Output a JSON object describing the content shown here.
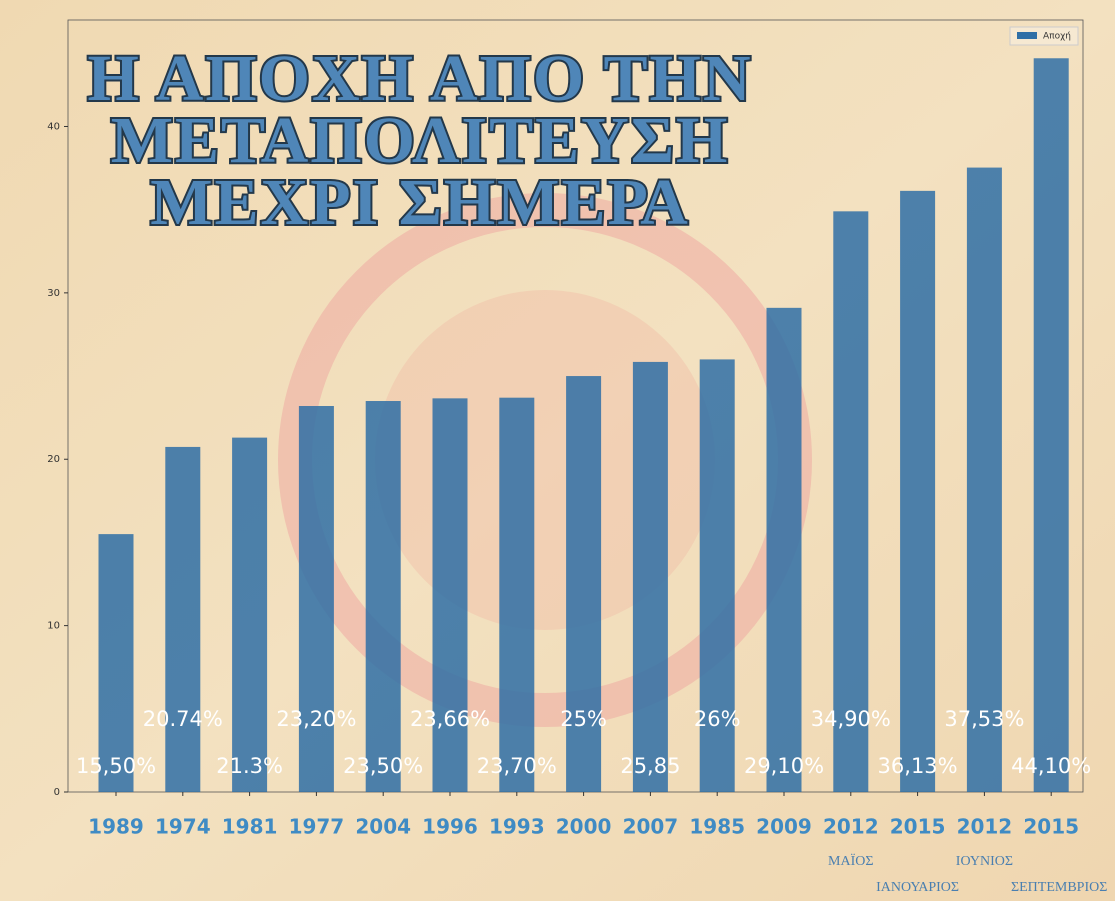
{
  "chart_data": {
    "type": "bar",
    "title_lines": [
      "Η ΑΠΟΧΗ ΑΠΟ ΤΗΝ",
      "ΜΕΤΑΠΟΛΙΤΕΥΣΗ",
      "ΜΕΧΡΙ ΣΗΜΕΡΑ"
    ],
    "categories": [
      "1989",
      "1974",
      "1981",
      "1977",
      "2004",
      "1996",
      "1993",
      "2000",
      "2007",
      "1985",
      "2009",
      "2012",
      "2015",
      "2012",
      "2015"
    ],
    "month_labels": [
      null,
      null,
      null,
      null,
      null,
      null,
      null,
      null,
      null,
      null,
      null,
      "ΜΑΪΟΣ",
      "ΙΑΝΟΥΑΡΙΟΣ",
      "ΙΟΥΝΙΟΣ",
      "ΣΕΠΤΕΜΒΡΙΟΣ"
    ],
    "series": [
      {
        "name": "Αποχή",
        "color": "#2f6fa6",
        "values": [
          15.5,
          20.74,
          21.3,
          23.2,
          23.5,
          23.66,
          23.7,
          25,
          25.85,
          26,
          29.1,
          34.9,
          36.13,
          37.53,
          44.1
        ],
        "value_labels": [
          "15,50%",
          "20.74%",
          "21.3%",
          "23,20%",
          "23,50%",
          "23,66%",
          "23,70%",
          "25%",
          "25,85",
          "26%",
          "29,10%",
          "34,90%",
          "36,13%",
          "37,53%",
          "44,10%"
        ]
      }
    ],
    "ylim": [
      0,
      46.4
    ],
    "yticks": [
      0,
      10,
      20,
      30,
      40
    ],
    "legend": "upper right"
  }
}
